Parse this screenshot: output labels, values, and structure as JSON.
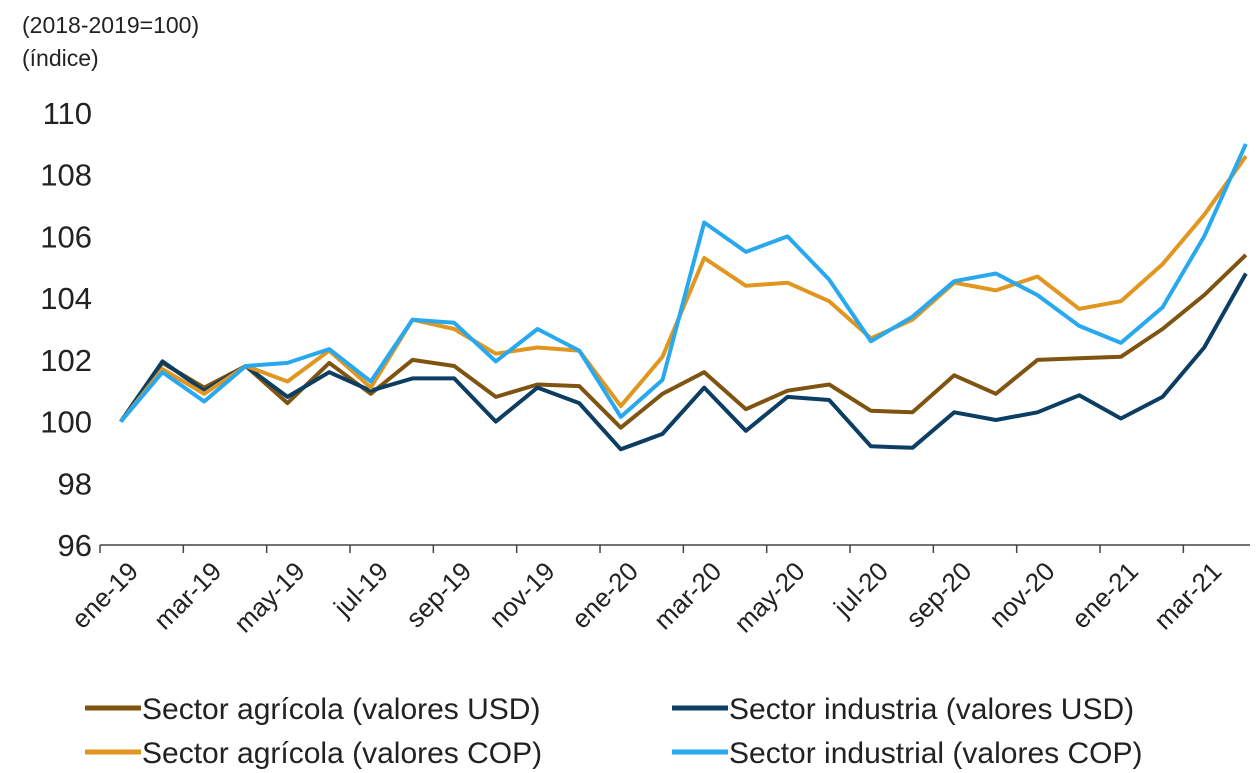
{
  "chart_data": {
    "type": "line",
    "subtitle_lines": [
      "(2018-2019=100)",
      "(índice)"
    ],
    "categories": [
      "ene-19",
      null,
      "mar-19",
      null,
      "may-19",
      null,
      "jul-19",
      null,
      "sep-19",
      null,
      "nov-19",
      null,
      "ene-20",
      null,
      "mar-20",
      null,
      "may-20",
      null,
      "jul-20",
      null,
      "sep-20",
      null,
      "nov-20",
      null,
      "ene-21",
      null,
      "mar-21",
      null
    ],
    "series": [
      {
        "name": "Sector agrícola (valores USD)",
        "color": "#7f5410",
        "values": [
          100,
          101.9,
          101.1,
          101.8,
          100.6,
          101.9,
          100.9,
          102.0,
          101.8,
          100.8,
          101.2,
          101.15,
          99.8,
          100.9,
          101.6,
          100.4,
          101.0,
          101.2,
          100.35,
          100.3,
          101.5,
          100.9,
          102.0,
          102.05,
          102.1,
          103.0,
          104.1,
          105.4
        ]
      },
      {
        "name": "Sector industria (valores USD)",
        "color": "#0b3e62",
        "values": [
          100,
          101.95,
          101.0,
          101.8,
          100.8,
          101.6,
          101.0,
          101.4,
          101.4,
          100.0,
          101.1,
          100.6,
          99.1,
          99.6,
          101.1,
          99.7,
          100.8,
          100.7,
          99.2,
          99.15,
          100.3,
          100.05,
          100.3,
          100.85,
          100.1,
          100.8,
          102.4,
          104.8
        ]
      },
      {
        "name": "Sector agrícola (valores COP)",
        "color": "#e0961f",
        "values": [
          100,
          101.7,
          100.9,
          101.8,
          101.3,
          102.3,
          101.1,
          103.3,
          103.0,
          102.2,
          102.4,
          102.3,
          100.5,
          102.1,
          105.3,
          104.4,
          104.5,
          103.9,
          102.7,
          103.3,
          104.5,
          104.25,
          104.7,
          103.65,
          103.9,
          105.1,
          106.7,
          108.6
        ]
      },
      {
        "name": "Sector industrial (valores COP)",
        "color": "#27a8ef",
        "values": [
          100,
          101.6,
          100.65,
          101.8,
          101.9,
          102.35,
          101.3,
          103.3,
          103.2,
          101.95,
          103.0,
          102.3,
          100.15,
          101.35,
          106.45,
          105.5,
          106.0,
          104.6,
          102.6,
          103.4,
          104.55,
          104.8,
          104.1,
          103.1,
          102.55,
          103.7,
          106.0,
          109.0
        ]
      }
    ],
    "ylim": [
      96,
      110
    ],
    "yticks": [
      96,
      98,
      100,
      102,
      104,
      106,
      108,
      110
    ],
    "grid": false
  }
}
